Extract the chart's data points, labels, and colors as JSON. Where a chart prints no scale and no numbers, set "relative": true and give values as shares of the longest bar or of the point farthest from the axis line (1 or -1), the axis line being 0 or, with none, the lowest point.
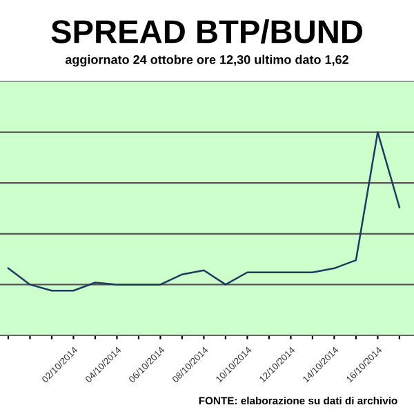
{
  "chart_data": {
    "type": "line",
    "title": "SPREAD BTP/BUND",
    "subtitle": "aggiornato 24 ottobre ore 12,30 ultimo dato 1,62",
    "categories": [
      null,
      null,
      null,
      "02/10/2014",
      null,
      "04/10/2014",
      null,
      "06/10/2014",
      null,
      "08/10/2014",
      null,
      "10/10/2014",
      null,
      "12/10/2014",
      null,
      "14/10/2014",
      null,
      "16/10/2014",
      null
    ],
    "values": [
      0.33,
      0.25,
      0.22,
      0.22,
      0.26,
      0.25,
      0.25,
      0.25,
      0.3,
      0.32,
      0.25,
      0.31,
      0.31,
      0.31,
      0.31,
      0.33,
      0.37,
      1,
      0.63
    ],
    "color": "#1f3a5f",
    "relative": true,
    "grid": "y",
    "marker": "none",
    "annotations": [
      "FONTE: elaborazione su dati di archivio"
    ]
  }
}
